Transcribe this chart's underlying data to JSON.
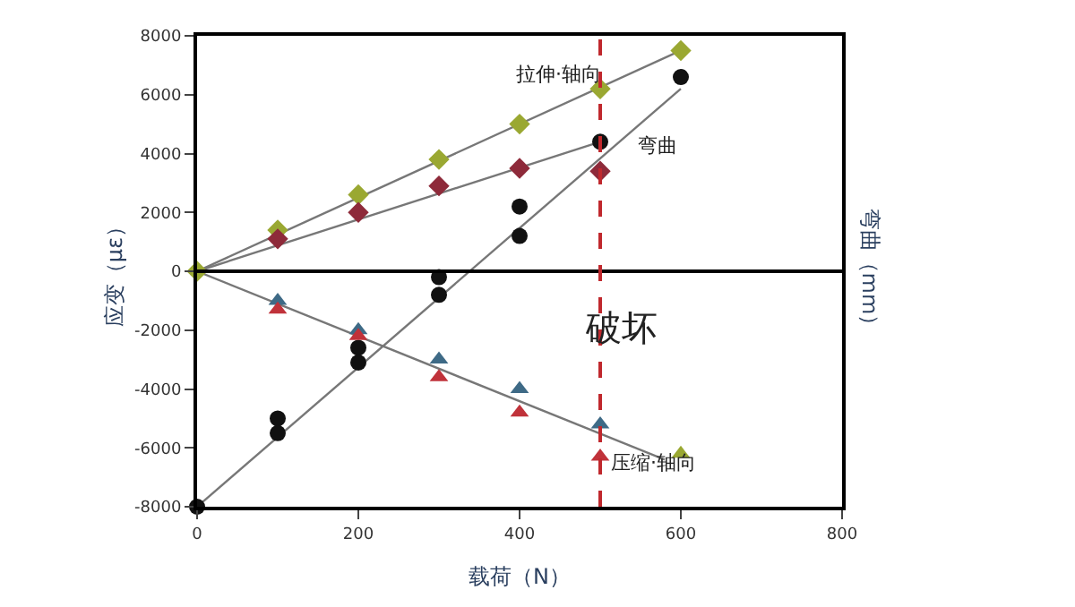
{
  "chart_data": {
    "type": "scatter",
    "xlabel": "载荷（N）",
    "ylabel": "应变（με）",
    "y2label": "弯曲（mm）",
    "xlim": [
      0,
      800
    ],
    "xticks": [
      0,
      200,
      400,
      600,
      800
    ],
    "ylim": [
      -8000,
      8000
    ],
    "yticks": [
      -8000,
      -6000,
      -4000,
      -2000,
      0,
      2000,
      4000,
      6000,
      8000
    ],
    "series": [
      {
        "type": "line",
        "color": "#777777",
        "marker": "none",
        "x": [
          0,
          600
        ],
        "values": [
          0,
          7500
        ]
      },
      {
        "type": "line",
        "color": "#777777",
        "marker": "none",
        "x": [
          0,
          500
        ],
        "values": [
          0,
          4400
        ]
      },
      {
        "type": "line",
        "color": "#777777",
        "marker": "none",
        "x": [
          0,
          600
        ],
        "values": [
          -8000,
          6200
        ]
      },
      {
        "type": "line",
        "color": "#777777",
        "marker": "none",
        "x": [
          0,
          580
        ],
        "values": [
          0,
          -6400
        ]
      },
      {
        "color": "#9aa832",
        "marker": "diamond",
        "x": [
          0,
          100,
          200,
          300,
          400,
          500,
          600
        ],
        "values": [
          0,
          1400,
          2600,
          3800,
          5000,
          6200,
          7500
        ]
      },
      {
        "color": "#8e2a3a",
        "marker": "diamond",
        "x": [
          100,
          200,
          300,
          400,
          500
        ],
        "values": [
          1100,
          2000,
          2900,
          3500,
          3400
        ]
      },
      {
        "color": "#111111",
        "marker": "circle",
        "x": [
          0,
          100,
          100,
          200,
          200,
          300,
          300,
          400,
          400,
          500,
          600
        ],
        "values": [
          -8000,
          -5000,
          -5500,
          -2600,
          -3100,
          -200,
          -800,
          2200,
          1200,
          4400,
          6600
        ]
      },
      {
        "color": "#3e6a86",
        "marker": "triangle",
        "x": [
          100,
          200,
          300,
          400,
          500
        ],
        "values": [
          -1000,
          -2000,
          -3000,
          -4000,
          -5200
        ]
      },
      {
        "color": "#c0323a",
        "marker": "triangle",
        "x": [
          100,
          200,
          300,
          400,
          500
        ],
        "values": [
          -1300,
          -2200,
          -3600,
          -4800,
          -6300
        ]
      },
      {
        "color": "#9aa832",
        "marker": "triangle",
        "x": [
          600
        ],
        "values": [
          -6200
        ]
      }
    ],
    "ref_lines": [
      {
        "axis": "y",
        "value": 0,
        "color": "#000000",
        "line_style": "solid"
      },
      {
        "axis": "x",
        "value": 500,
        "color": "#c0282d",
        "line_style": "dashed"
      }
    ],
    "annotations": [
      "拉伸·轴向",
      "弯曲",
      "破坏",
      "压缩·轴向"
    ]
  }
}
